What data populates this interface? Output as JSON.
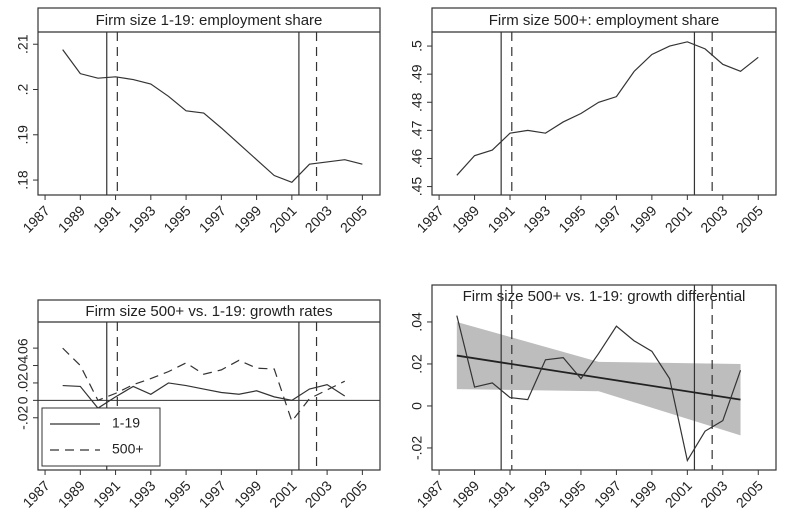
{
  "chart_data": [
    {
      "type": "line",
      "title": "Firm size 1-19: employment share",
      "x": [
        1988,
        1989,
        1990,
        1991,
        1992,
        1993,
        1994,
        1995,
        1996,
        1997,
        1998,
        1999,
        2000,
        2001,
        2002,
        2003,
        2004,
        2005
      ],
      "values": [
        0.2088,
        0.2035,
        0.2025,
        0.2028,
        0.2022,
        0.2012,
        0.1985,
        0.1953,
        0.1948,
        0.1915,
        0.188,
        0.1845,
        0.181,
        0.1795,
        0.1835,
        0.184,
        0.1845,
        0.1835
      ],
      "color": "#333333",
      "xlim": [
        1986.6,
        2006
      ],
      "xticks": [
        1987,
        1989,
        1991,
        1993,
        1995,
        1997,
        1999,
        2001,
        2003,
        2005
      ],
      "ylim": [
        0.1767,
        0.2127
      ],
      "yticks": [
        {
          "value": 0.18,
          "label": ".18"
        },
        {
          "value": 0.19,
          "label": ".19"
        },
        {
          "value": 0.2,
          "label": ".2"
        },
        {
          "value": 0.21,
          "label": ".21"
        }
      ],
      "vlines": [
        {
          "x": 1990.5,
          "style": "solid"
        },
        {
          "x": 1991.1,
          "style": "dashed"
        },
        {
          "x": 2001.4,
          "style": "solid"
        },
        {
          "x": 2002.4,
          "style": "dashed"
        }
      ]
    },
    {
      "type": "line",
      "title": "Firm size 500+: employment share",
      "x": [
        1988,
        1989,
        1990,
        1991,
        1992,
        1993,
        1994,
        1995,
        1996,
        1997,
        1998,
        1999,
        2000,
        2001,
        2002,
        2003,
        2004,
        2005
      ],
      "values": [
        0.454,
        0.461,
        0.463,
        0.469,
        0.47,
        0.469,
        0.473,
        0.476,
        0.48,
        0.482,
        0.491,
        0.497,
        0.5,
        0.5015,
        0.499,
        0.4935,
        0.491,
        0.496
      ],
      "color": "#333333",
      "xlim": [
        1986.6,
        2006
      ],
      "xticks": [
        1987,
        1989,
        1991,
        1993,
        1995,
        1997,
        1999,
        2001,
        2003,
        2005
      ],
      "ylim": [
        0.447,
        0.505
      ],
      "yticks": [
        {
          "value": 0.45,
          "label": ".45"
        },
        {
          "value": 0.46,
          "label": ".46"
        },
        {
          "value": 0.47,
          "label": ".47"
        },
        {
          "value": 0.48,
          "label": ".48"
        },
        {
          "value": 0.49,
          "label": ".49"
        },
        {
          "value": 0.5,
          "label": ".5"
        }
      ],
      "vlines": [
        {
          "x": 1990.5,
          "style": "solid"
        },
        {
          "x": 1991.1,
          "style": "dashed"
        },
        {
          "x": 2001.4,
          "style": "solid"
        },
        {
          "x": 2002.4,
          "style": "dashed"
        }
      ]
    },
    {
      "type": "line",
      "title": "Firm size 500+ vs. 1-19: growth rates",
      "x": [
        1988,
        1989,
        1990,
        1991,
        1992,
        1993,
        1994,
        1995,
        1996,
        1997,
        1998,
        1999,
        2000,
        2001,
        2002,
        2003,
        2004
      ],
      "series": [
        {
          "name": "1-19",
          "color": "#333333",
          "style": "solid",
          "values": [
            0.017,
            0.016,
            -0.009,
            0.004,
            0.016,
            0.007,
            0.02,
            0.017,
            0.013,
            0.009,
            0.007,
            0.011,
            0.004,
            0.0,
            0.013,
            0.018,
            0.005
          ]
        },
        {
          "name": "500+",
          "color": "#333333",
          "style": "dashed",
          "values": [
            0.06,
            0.04,
            0.0,
            0.008,
            0.018,
            0.025,
            0.033,
            0.043,
            0.03,
            0.035,
            0.046,
            0.037,
            0.036,
            -0.024,
            0.002,
            0.012,
            0.022
          ]
        }
      ],
      "xlim": [
        1986.6,
        2006
      ],
      "xticks": [
        1987,
        1989,
        1991,
        1993,
        1995,
        1997,
        1999,
        2001,
        2003,
        2005
      ],
      "ylim": [
        -0.08,
        0.09
      ],
      "yticks": [
        {
          "value": -0.02,
          "label": "-.02"
        },
        0,
        {
          "value": 0.02,
          "label": ".02"
        },
        {
          "value": 0.04,
          "label": ".04"
        },
        {
          "value": 0.06,
          "label": ".06"
        }
      ],
      "zero_line": true,
      "legend": "bottom-left",
      "vlines": [
        {
          "x": 1990.5,
          "style": "solid"
        },
        {
          "x": 1991.1,
          "style": "dashed"
        },
        {
          "x": 2001.4,
          "style": "solid"
        },
        {
          "x": 2002.4,
          "style": "dashed"
        }
      ]
    },
    {
      "type": "line",
      "title": "Firm size 500+ vs. 1-19: growth differential",
      "x": [
        1988,
        1989,
        1990,
        1991,
        1992,
        1993,
        1994,
        1995,
        1996,
        1997,
        1998,
        1999,
        2000,
        2001,
        2002,
        2003,
        2004
      ],
      "values": [
        0.043,
        0.009,
        0.011,
        0.004,
        0.003,
        0.022,
        0.023,
        0.013,
        0.025,
        0.038,
        0.031,
        0.026,
        0.013,
        -0.026,
        -0.012,
        -0.007,
        0.017
      ],
      "color": "#333333",
      "fit": {
        "x": [
          1988,
          2004
        ],
        "values": [
          0.024,
          0.003
        ]
      },
      "band": {
        "x": [
          1988,
          1996,
          2004
        ],
        "upper": [
          0.04,
          0.021,
          0.02
        ],
        "lower": [
          0.008,
          0.007,
          -0.014
        ],
        "color": "#bdbdbd"
      },
      "xlim": [
        1986.6,
        2006
      ],
      "xticks": [
        1987,
        1989,
        1991,
        1993,
        1995,
        1997,
        1999,
        2001,
        2003,
        2005
      ],
      "ylim": [
        -0.0305,
        0.0576
      ],
      "yticks": [
        {
          "value": -0.02,
          "label": "-.02"
        },
        0,
        {
          "value": 0.02,
          "label": ".02"
        },
        {
          "value": 0.04,
          "label": ".04"
        }
      ],
      "vlines": [
        {
          "x": 1990.5,
          "style": "solid"
        },
        {
          "x": 1991.1,
          "style": "dashed"
        },
        {
          "x": 2001.4,
          "style": "solid"
        },
        {
          "x": 2002.4,
          "style": "dashed"
        }
      ]
    }
  ]
}
